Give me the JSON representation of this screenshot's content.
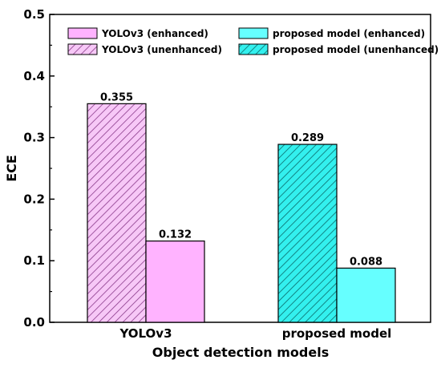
{
  "chart_data": {
    "type": "bar",
    "xlabel": "Object detection models",
    "ylabel": "ECE",
    "categories": [
      "YOLOv3",
      "proposed model"
    ],
    "ylim": [
      0,
      0.5
    ],
    "yticks": [
      "0.0",
      "0.1",
      "0.2",
      "0.3",
      "0.4",
      "0.5"
    ],
    "series": [
      {
        "name": "YOLOv3 (unenhanced)",
        "category": "YOLOv3",
        "value": 0.355,
        "label": "0.355",
        "color": "#f2b3f2",
        "pattern": "hatched"
      },
      {
        "name": "YOLOv3 (enhanced)",
        "category": "YOLOv3",
        "value": 0.132,
        "label": "0.132",
        "color": "#ffb3ff",
        "pattern": "solid"
      },
      {
        "name": "proposed model (unenhanced)",
        "category": "proposed model",
        "value": 0.289,
        "label": "0.289",
        "color": "#33ffff",
        "pattern": "hatched"
      },
      {
        "name": "proposed model (enhanced)",
        "category": "proposed model",
        "value": 0.088,
        "label": "0.088",
        "color": "#66ffff",
        "pattern": "solid"
      }
    ],
    "legend": {
      "placement": "top",
      "entries": [
        {
          "label": "YOLOv3 (enhanced)",
          "color": "#ffb3ff",
          "pattern": "solid"
        },
        {
          "label": "proposed model (enhanced)",
          "color": "#66ffff",
          "pattern": "solid"
        },
        {
          "label": "YOLOv3 (unenhanced)",
          "color": "#f2b3f2",
          "pattern": "hatched"
        },
        {
          "label": "proposed model (unenhanced)",
          "color": "#33ffff",
          "pattern": "hatched"
        }
      ]
    },
    "grid": false
  }
}
